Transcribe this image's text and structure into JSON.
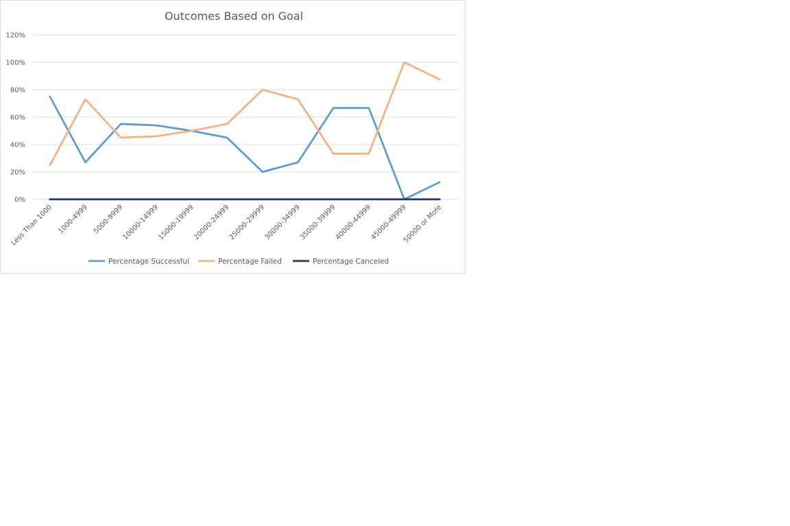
{
  "chart_data": {
    "type": "line",
    "title": "Outcomes Based on Goal",
    "xlabel": "",
    "ylabel": "",
    "categories": [
      "Less Than 1000",
      "1000-4999",
      "5000-9999",
      "10000-14999",
      "15000-19999",
      "20000-24999",
      "25000-29999",
      "30000-34999",
      "35000-39999",
      "40000-44999",
      "45000-49999",
      "50000 or More"
    ],
    "ylim": [
      0,
      120
    ],
    "yticks": [
      0,
      20,
      40,
      60,
      80,
      100,
      120
    ],
    "ytick_labels": [
      "0%",
      "20%",
      "40%",
      "60%",
      "80%",
      "100%",
      "120%"
    ],
    "grid": true,
    "legend_position": "bottom",
    "series": [
      {
        "name": "Percentage Successful",
        "color": "#5b9bd5",
        "values": [
          75,
          27,
          55,
          54,
          50,
          45,
          20,
          27,
          66.7,
          66.7,
          0,
          12.5
        ]
      },
      {
        "name": "Percentage Failed",
        "color": "#f4b183",
        "values": [
          25,
          73,
          45,
          46,
          50,
          55,
          80,
          73,
          33.3,
          33.3,
          100,
          87.5
        ]
      },
      {
        "name": "Percentage Canceled",
        "color": "#1f3864",
        "values": [
          0,
          0,
          0,
          0,
          0,
          0,
          0,
          0,
          0,
          0,
          0,
          0
        ]
      }
    ]
  }
}
